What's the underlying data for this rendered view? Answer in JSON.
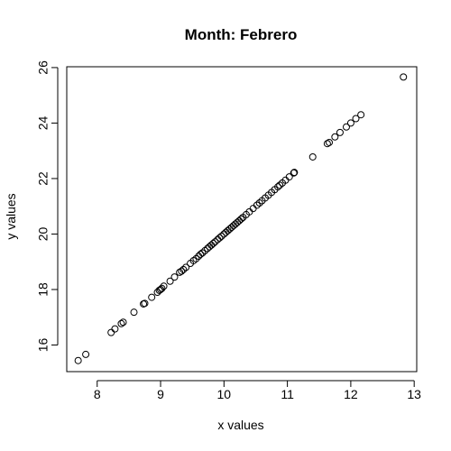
{
  "chart_data": {
    "type": "scatter",
    "title": "Month: Febrero",
    "xlabel": "x values",
    "ylabel": "y values",
    "xlim": [
      7.52,
      13.04
    ],
    "ylim": [
      15.04,
      26.03
    ],
    "xticks": [
      8,
      9,
      10,
      11,
      12,
      13
    ],
    "yticks": [
      16,
      18,
      20,
      22,
      24,
      26
    ],
    "grid": false,
    "point_style": "open-circle",
    "points": [
      [
        7.7,
        15.44
      ],
      [
        7.82,
        15.66
      ],
      [
        8.22,
        16.45
      ],
      [
        8.28,
        16.58
      ],
      [
        8.38,
        16.77
      ],
      [
        8.41,
        16.82
      ],
      [
        8.58,
        17.18
      ],
      [
        8.73,
        17.48
      ],
      [
        8.75,
        17.5
      ],
      [
        8.86,
        17.72
      ],
      [
        8.95,
        17.9
      ],
      [
        8.98,
        17.97
      ],
      [
        9.0,
        18.0
      ],
      [
        9.02,
        18.04
      ],
      [
        9.05,
        18.12
      ],
      [
        9.15,
        18.3
      ],
      [
        9.22,
        18.45
      ],
      [
        9.3,
        18.62
      ],
      [
        9.33,
        18.66
      ],
      [
        9.36,
        18.72
      ],
      [
        9.4,
        18.8
      ],
      [
        9.47,
        18.94
      ],
      [
        9.52,
        19.04
      ],
      [
        9.56,
        19.11
      ],
      [
        9.6,
        19.2
      ],
      [
        9.63,
        19.27
      ],
      [
        9.66,
        19.32
      ],
      [
        9.7,
        19.4
      ],
      [
        9.74,
        19.48
      ],
      [
        9.77,
        19.54
      ],
      [
        9.8,
        19.6
      ],
      [
        9.83,
        19.66
      ],
      [
        9.86,
        19.72
      ],
      [
        9.9,
        19.8
      ],
      [
        9.93,
        19.86
      ],
      [
        9.96,
        19.92
      ],
      [
        10.0,
        20.0
      ],
      [
        10.03,
        20.06
      ],
      [
        10.06,
        20.12
      ],
      [
        10.09,
        20.18
      ],
      [
        10.12,
        20.24
      ],
      [
        10.15,
        20.3
      ],
      [
        10.18,
        20.36
      ],
      [
        10.21,
        20.42
      ],
      [
        10.24,
        20.48
      ],
      [
        10.27,
        20.54
      ],
      [
        10.3,
        20.6
      ],
      [
        10.35,
        20.7
      ],
      [
        10.4,
        20.8
      ],
      [
        10.46,
        20.92
      ],
      [
        10.52,
        21.04
      ],
      [
        10.56,
        21.12
      ],
      [
        10.6,
        21.2
      ],
      [
        10.65,
        21.3
      ],
      [
        10.7,
        21.4
      ],
      [
        10.75,
        21.5
      ],
      [
        10.8,
        21.6
      ],
      [
        10.85,
        21.7
      ],
      [
        10.88,
        21.76
      ],
      [
        10.92,
        21.84
      ],
      [
        10.97,
        21.94
      ],
      [
        11.03,
        22.06
      ],
      [
        11.1,
        22.2
      ],
      [
        11.11,
        22.22
      ],
      [
        11.4,
        22.78
      ],
      [
        11.63,
        23.26
      ],
      [
        11.66,
        23.3
      ],
      [
        11.75,
        23.5
      ],
      [
        11.83,
        23.66
      ],
      [
        11.93,
        23.86
      ],
      [
        12.0,
        24.0
      ],
      [
        12.08,
        24.16
      ],
      [
        12.16,
        24.3
      ],
      [
        12.83,
        25.66
      ]
    ]
  }
}
